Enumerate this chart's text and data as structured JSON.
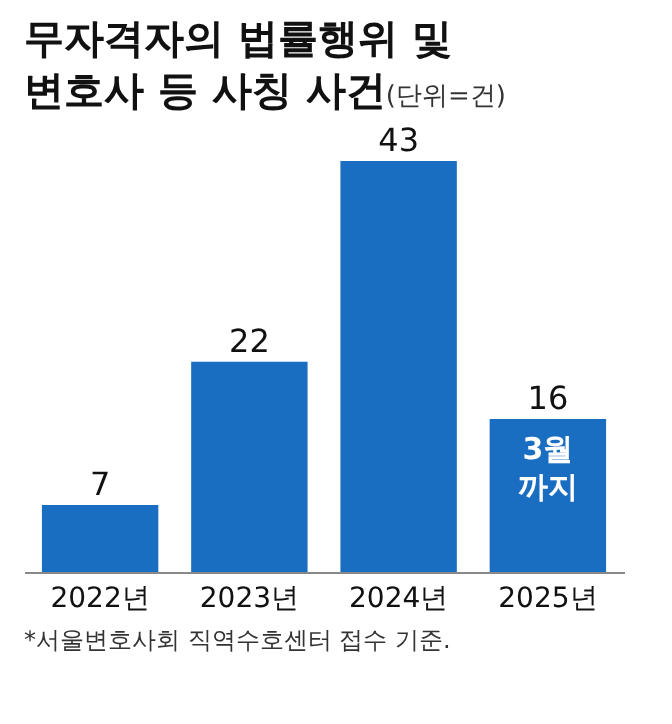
{
  "chart_data": {
    "type": "bar",
    "title": "무자격자의 법률행위 및\n변호사 등 사칭 사건",
    "subtitle": "(단위=건)",
    "categories": [
      "2022년",
      "2023년",
      "2024년",
      "2025년"
    ],
    "values": [
      7,
      22,
      43,
      16
    ],
    "color": "#1a6ec2",
    "data_labels": true,
    "annotations": [
      {
        "text": "3월 까지",
        "x": "2025년",
        "y": 16
      },
      "*서울변호사회 직역수호센터 접수 기준."
    ]
  }
}
